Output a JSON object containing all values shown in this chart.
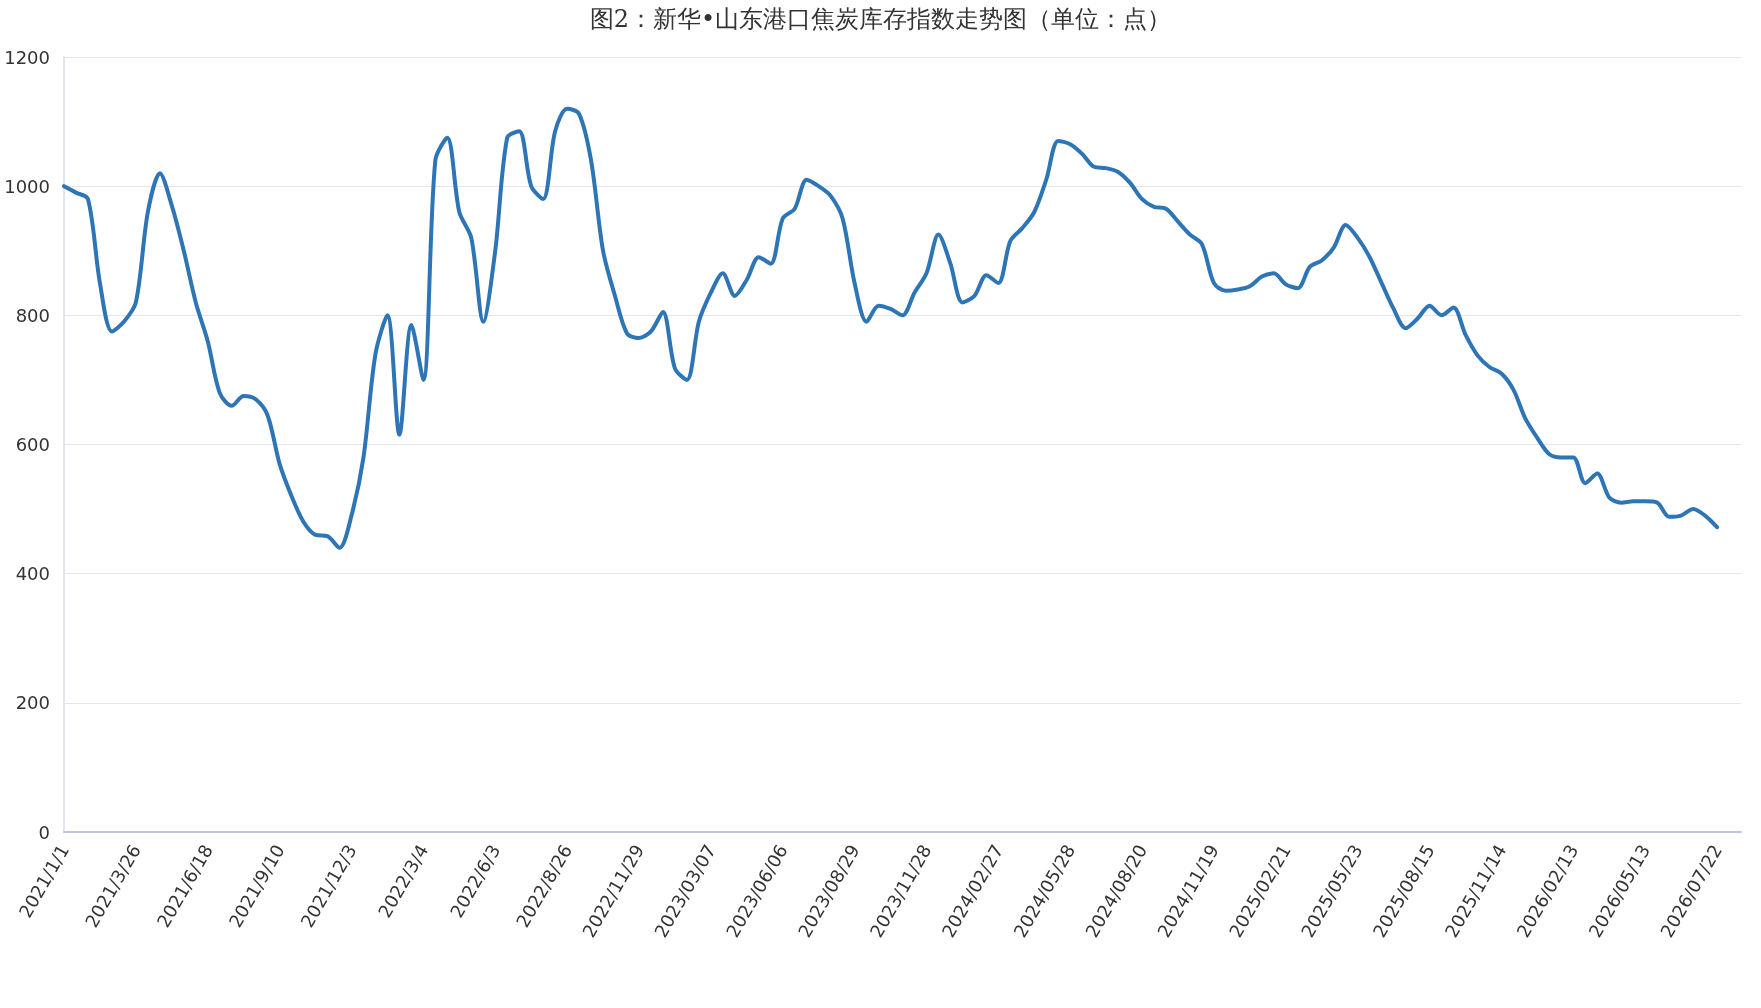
{
  "chart_data": {
    "type": "line",
    "title": "图2：新华•山东港口焦炭库存指数走势图（单位：点）",
    "categories": [
      "2021/1/1",
      null,
      null,
      null,
      null,
      null,
      "2021/3/26",
      null,
      null,
      null,
      null,
      null,
      "2021/6/18",
      null,
      null,
      null,
      null,
      null,
      "2021/9/10",
      null,
      null,
      null,
      null,
      null,
      "2021/12/3",
      null,
      null,
      null,
      null,
      null,
      "2022/3/4",
      null,
      null,
      null,
      null,
      null,
      "2022/6/3",
      null,
      null,
      null,
      null,
      null,
      "2022/8/26",
      null,
      null,
      null,
      null,
      null,
      "2022/11/29",
      null,
      null,
      null,
      null,
      null,
      "2023/03/07",
      null,
      null,
      null,
      null,
      null,
      "2023/06/06",
      null,
      null,
      null,
      null,
      null,
      "2023/08/29",
      null,
      null,
      null,
      null,
      null,
      "2023/11/28",
      null,
      null,
      null,
      null,
      null,
      "2024/02/27",
      null,
      null,
      null,
      null,
      null,
      "2024/05/28",
      null,
      null,
      null,
      null,
      null,
      "2024/08/20",
      null,
      null,
      null,
      null,
      null,
      "2024/11/19",
      null,
      null,
      null,
      null,
      null,
      "2025/02/21",
      null,
      null,
      null,
      null,
      null,
      "2025/05/23",
      null,
      null,
      null,
      null,
      null,
      "2025/08/15",
      null,
      null,
      null,
      null,
      null,
      "2025/11/14",
      null,
      null,
      null,
      null,
      null,
      "2026/02/13",
      null,
      null,
      null,
      null,
      null,
      "2026/05/13",
      null,
      null,
      null,
      null,
      null,
      "2026/07/22",
      null,
      null
    ],
    "series": [
      {
        "color": "#2e75b6",
        "values": [
          1000,
          990,
          980,
          850,
          775,
          790,
          820,
          960,
          1020,
          970,
          900,
          820,
          760,
          680,
          660,
          675,
          670,
          645,
          570,
          520,
          480,
          460,
          458,
          440,
          490,
          580,
          740,
          800,
          615,
          785,
          700,
          1040,
          1075,
          960,
          920,
          790,
          900,
          1075,
          1085,
          1000,
          980,
          1085,
          1120,
          1112,
          1040,
          900,
          830,
          772,
          765,
          775,
          805,
          718,
          700,
          790,
          835,
          865,
          830,
          855,
          890,
          880,
          950,
          965,
          1010,
          1000,
          985,
          950,
          850,
          790,
          815,
          810,
          800,
          835,
          865,
          925,
          880,
          820,
          830,
          862,
          850,
          915,
          935,
          960,
          1010,
          1070,
          1065,
          1050,
          1030,
          1028,
          1022,
          1005,
          980,
          968,
          965,
          945,
          925,
          910,
          850,
          838,
          840,
          845,
          860,
          865,
          848,
          842,
          875,
          885,
          905,
          940,
          920,
          890,
          850,
          810,
          780,
          795,
          815,
          800,
          812,
          770,
          738,
          720,
          710,
          685,
          640,
          610,
          585,
          580,
          580,
          540,
          555,
          518,
          510,
          512,
          512,
          510,
          488,
          490,
          500,
          490,
          472,
          null,
          null
        ]
      }
    ],
    "ylim": [
      0,
      1200
    ],
    "yticks": [
      0,
      200,
      400,
      600,
      800,
      1000,
      1200
    ],
    "grid": "y",
    "marker": "none",
    "line_style": "solid"
  }
}
